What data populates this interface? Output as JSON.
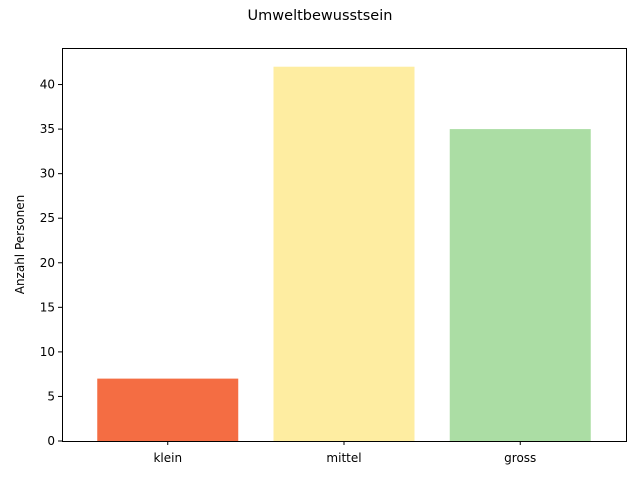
{
  "chart_data": {
    "type": "bar",
    "title": "Umweltbewusstsein",
    "xlabel": "",
    "ylabel": "Anzahl Personen",
    "categories": [
      "klein",
      "mittel",
      "gross"
    ],
    "values": [
      7,
      42,
      35
    ],
    "colors": [
      "#f46d43",
      "#feeda1",
      "#abdda4"
    ],
    "ylim": [
      0,
      44.1
    ],
    "yticks": [
      0,
      5,
      10,
      15,
      20,
      25,
      30,
      35,
      40
    ],
    "grid": false,
    "legend": "none"
  }
}
